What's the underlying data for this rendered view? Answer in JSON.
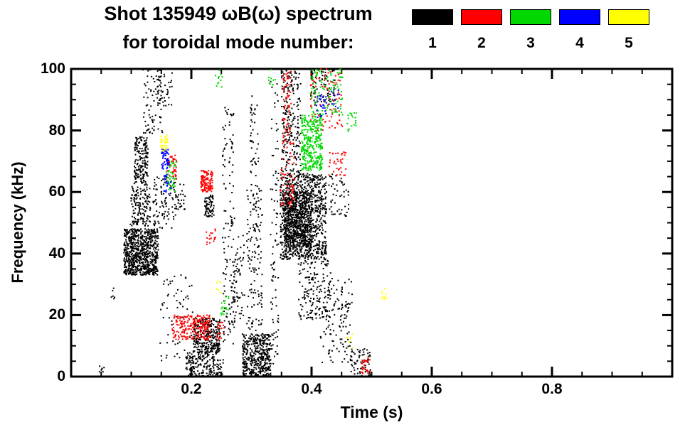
{
  "title": {
    "line1": "Shot 135949 ωB(ω) spectrum",
    "line2": "for toroidal mode number:"
  },
  "legend": {
    "modes": [
      {
        "label": "1",
        "color": "#000000"
      },
      {
        "label": "2",
        "color": "#FF0000"
      },
      {
        "label": "3",
        "color": "#00D800"
      },
      {
        "label": "4",
        "color": "#0000FF"
      },
      {
        "label": "5",
        "color": "#FFFF00"
      }
    ]
  },
  "chart_data": {
    "type": "scatter",
    "title": "Shot 135949 ωB(ω) spectrum for toroidal mode number 1-5",
    "xlabel": "Time (s)",
    "ylabel": "Frequency (kHz)",
    "xlim": [
      0.0,
      1.0
    ],
    "ylim": [
      0,
      100
    ],
    "xticks": [
      {
        "v": 0.2,
        "label": "0.2"
      },
      {
        "v": 0.4,
        "label": "0.4"
      },
      {
        "v": 0.6,
        "label": "0.6"
      },
      {
        "v": 0.8,
        "label": "0.8"
      }
    ],
    "yticks": [
      {
        "v": 0,
        "label": "0"
      },
      {
        "v": 20,
        "label": "20"
      },
      {
        "v": 40,
        "label": "40"
      },
      {
        "v": 60,
        "label": "60"
      },
      {
        "v": 80,
        "label": "80"
      },
      {
        "v": 100,
        "label": "100"
      }
    ],
    "x_minor_step": 0.05,
    "y_minor_step": 5,
    "grid": false,
    "legend_position": "top-right",
    "point_size": 2,
    "cluster_format": [
      "t_min_s",
      "t_max_s",
      "f_min_kHz",
      "f_max_kHz",
      "n_points"
    ],
    "series": [
      {
        "name": "n=1",
        "mode": 1,
        "color": "#000000",
        "clusters": [
          [
            0.045,
            0.057,
            1,
            4,
            8
          ],
          [
            0.065,
            0.075,
            25,
            29,
            6
          ],
          [
            0.088,
            0.145,
            33,
            48,
            800
          ],
          [
            0.098,
            0.132,
            49,
            63,
            160
          ],
          [
            0.105,
            0.128,
            63,
            78,
            180
          ],
          [
            0.118,
            0.152,
            79,
            100,
            70
          ],
          [
            0.135,
            0.175,
            48,
            66,
            90
          ],
          [
            0.143,
            0.168,
            88,
            100,
            45
          ],
          [
            0.148,
            0.205,
            4,
            33,
            70
          ],
          [
            0.168,
            0.19,
            54,
            63,
            30
          ],
          [
            0.19,
            0.253,
            0,
            8,
            200
          ],
          [
            0.203,
            0.248,
            8,
            19,
            300
          ],
          [
            0.222,
            0.238,
            52,
            59,
            70
          ],
          [
            0.252,
            0.272,
            10,
            88,
            130
          ],
          [
            0.268,
            0.29,
            18,
            46,
            70
          ],
          [
            0.285,
            0.332,
            0,
            14,
            420
          ],
          [
            0.292,
            0.318,
            15,
            62,
            140
          ],
          [
            0.298,
            0.312,
            62,
            92,
            45
          ],
          [
            0.332,
            0.345,
            4,
            96,
            90
          ],
          [
            0.348,
            0.425,
            38,
            66,
            1000
          ],
          [
            0.355,
            0.4,
            42,
            60,
            600
          ],
          [
            0.35,
            0.382,
            66,
            100,
            220
          ],
          [
            0.378,
            0.432,
            18,
            38,
            160
          ],
          [
            0.415,
            0.468,
            4,
            32,
            130
          ],
          [
            0.428,
            0.462,
            52,
            66,
            50
          ],
          [
            0.465,
            0.498,
            0,
            9,
            70
          ],
          [
            0.398,
            0.44,
            88,
            100,
            70
          ]
        ]
      },
      {
        "name": "n=2",
        "mode": 2,
        "color": "#FF0000",
        "clusters": [
          [
            0.168,
            0.232,
            12,
            20,
            220
          ],
          [
            0.216,
            0.236,
            60,
            67,
            130
          ],
          [
            0.225,
            0.242,
            42,
            48,
            18
          ],
          [
            0.348,
            0.372,
            55,
            78,
            70
          ],
          [
            0.352,
            0.366,
            78,
            100,
            55
          ],
          [
            0.398,
            0.452,
            80,
            100,
            90
          ],
          [
            0.428,
            0.458,
            64,
            73,
            35
          ],
          [
            0.482,
            0.497,
            1,
            6,
            30
          ],
          [
            0.158,
            0.176,
            64,
            72,
            40
          ],
          [
            0.243,
            0.256,
            12,
            18,
            20
          ]
        ]
      },
      {
        "name": "n=3",
        "mode": 3,
        "color": "#00D800",
        "clusters": [
          [
            0.383,
            0.418,
            67,
            85,
            340
          ],
          [
            0.398,
            0.452,
            85,
            100,
            110
          ],
          [
            0.158,
            0.176,
            60,
            70,
            45
          ],
          [
            0.248,
            0.262,
            20,
            27,
            18
          ],
          [
            0.238,
            0.252,
            94,
            100,
            12
          ],
          [
            0.328,
            0.34,
            94,
            100,
            10
          ],
          [
            0.458,
            0.476,
            79,
            88,
            18
          ]
        ]
      },
      {
        "name": "n=4",
        "mode": 4,
        "color": "#0000FF",
        "clusters": [
          [
            0.15,
            0.163,
            67,
            74,
            55
          ],
          [
            0.154,
            0.166,
            59,
            66,
            22
          ],
          [
            0.408,
            0.425,
            84,
            92,
            28
          ],
          [
            0.433,
            0.447,
            87,
            94,
            12
          ]
        ]
      },
      {
        "name": "n=5",
        "mode": 5,
        "color": "#FFFF00",
        "clusters": [
          [
            0.149,
            0.161,
            73,
            79,
            35
          ],
          [
            0.513,
            0.527,
            25,
            29,
            10
          ],
          [
            0.458,
            0.472,
            9,
            14,
            8
          ],
          [
            0.24,
            0.25,
            27,
            31,
            6
          ]
        ]
      }
    ]
  }
}
